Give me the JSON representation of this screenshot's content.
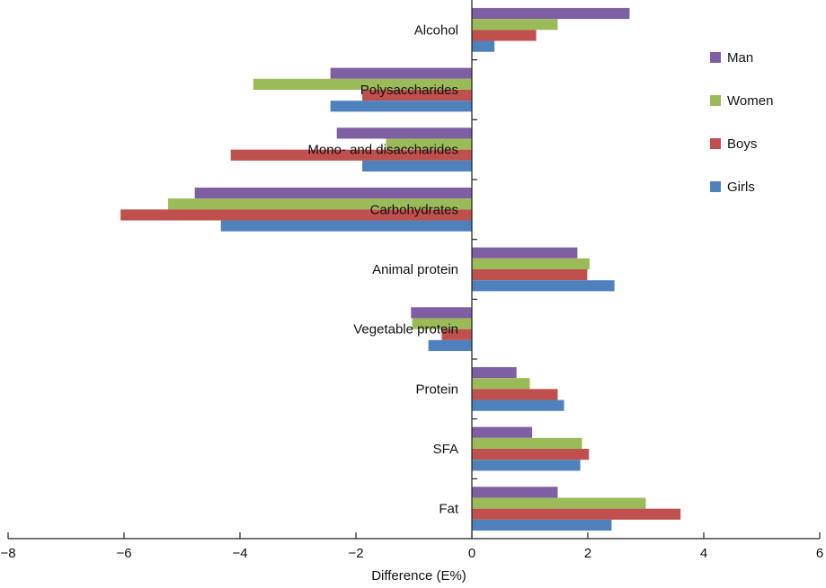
{
  "chart_data": {
    "type": "bar",
    "orientation": "horizontal",
    "title": "",
    "xlabel": "Difference (E%)",
    "ylabel": "",
    "xlim": [
      -8,
      6
    ],
    "xticks": [
      -8,
      -6,
      -4,
      -2,
      0,
      2,
      4,
      6
    ],
    "xtick_labels": [
      "−8",
      "−6",
      "−4",
      "−2",
      "0",
      "2",
      "4",
      "6"
    ],
    "grid": false,
    "legend_position": "top-right",
    "categories": [
      "Alcohol",
      "Polysaccharides",
      "Mono- and disaccharides",
      "Carbohydrates",
      "Animal protein",
      "Vegetable protein",
      "Protein",
      "SFA",
      "Fat"
    ],
    "series": [
      {
        "name": "Man",
        "color": "#7f5fa3",
        "values": [
          2.72,
          -2.44,
          -2.33,
          -4.78,
          1.82,
          -1.05,
          0.77,
          1.04,
          1.48
        ]
      },
      {
        "name": "Women",
        "color": "#9bbb59",
        "values": [
          1.48,
          -3.77,
          -1.48,
          -5.24,
          2.03,
          -1.03,
          1.0,
          1.9,
          3.0
        ]
      },
      {
        "name": "Boys",
        "color": "#c0504d",
        "values": [
          1.11,
          -1.89,
          -4.16,
          -6.06,
          1.99,
          -0.52,
          1.48,
          2.02,
          3.6
        ]
      },
      {
        "name": "Girls",
        "color": "#4f81bd",
        "values": [
          0.39,
          -2.44,
          -1.89,
          -4.33,
          2.46,
          -0.75,
          1.59,
          1.87,
          2.41
        ]
      }
    ]
  }
}
